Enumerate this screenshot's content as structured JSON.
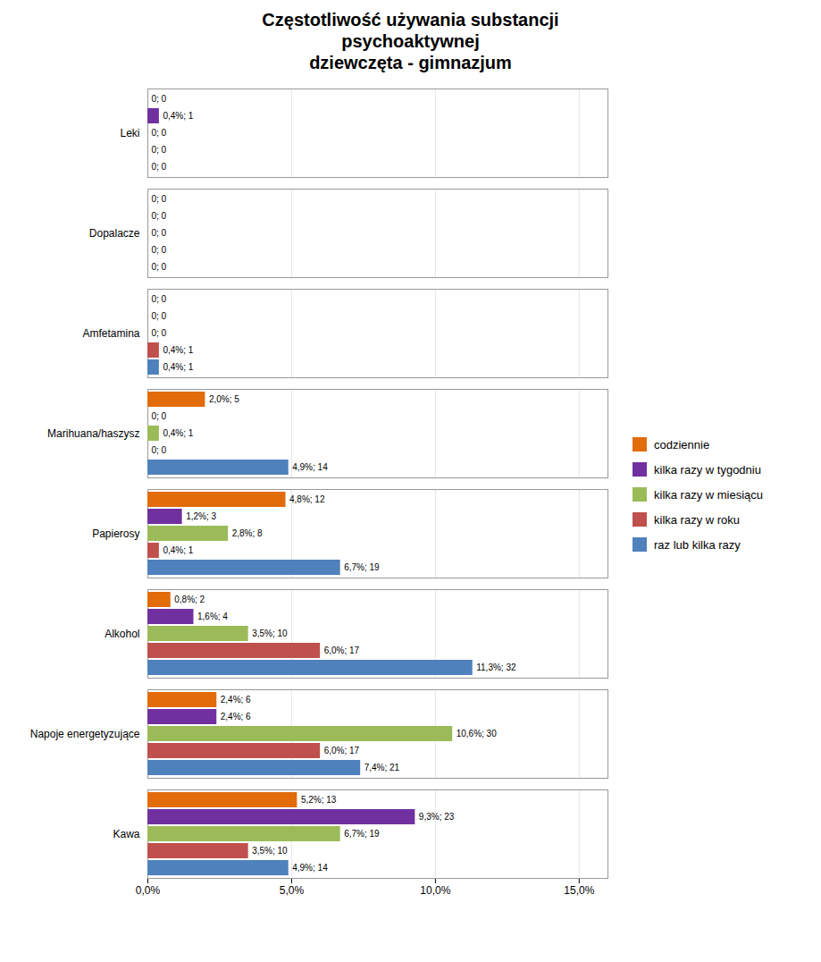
{
  "chart_data": {
    "type": "bar",
    "orientation": "horizontal",
    "title": "Częstotliwość używania substancji\npsychoaktywnej\ndziewczęta - gimnazjum",
    "categories": [
      "Kawa",
      "Napoje energetyzujące",
      "Alkohol",
      "Papierosy",
      "Marihuana/haszysz",
      "Amfetamina",
      "Dopalacze",
      "Leki"
    ],
    "series": [
      {
        "name": "codziennie",
        "color": "#e26b0a",
        "values": [
          5.2,
          2.4,
          0.8,
          4.8,
          2.0,
          0.0,
          0.0,
          0.0
        ],
        "counts": [
          13,
          6,
          2,
          12,
          5,
          0,
          0,
          0
        ],
        "value_labels": [
          "5,2%; 13",
          "2,4%; 6",
          "0,8%; 2",
          "4,8%; 12",
          "2,0%; 5",
          "0; 0",
          "0; 0",
          "0; 0"
        ]
      },
      {
        "name": "kilka razy w tygodniu",
        "color": "#7030a0",
        "values": [
          9.3,
          2.4,
          1.6,
          1.2,
          0.0,
          0.0,
          0.0,
          0.4
        ],
        "counts": [
          23,
          6,
          4,
          3,
          0,
          0,
          0,
          1
        ],
        "value_labels": [
          "9,3%; 23",
          "2,4%; 6",
          "1,6%; 4",
          "1,2%; 3",
          "0; 0",
          "0; 0",
          "0; 0",
          "0,4%; 1"
        ]
      },
      {
        "name": "kilka razy w miesiącu",
        "color": "#9bbb59",
        "values": [
          6.7,
          10.6,
          3.5,
          2.8,
          0.4,
          0.0,
          0.0,
          0.0
        ],
        "counts": [
          19,
          30,
          10,
          8,
          1,
          0,
          0,
          0
        ],
        "value_labels": [
          "6,7%; 19",
          "10,6%; 30",
          "3,5%; 10",
          "2,8%; 8",
          "0,4%; 1",
          "0; 0",
          "0; 0",
          "0; 0"
        ]
      },
      {
        "name": "kilka razy w roku",
        "color": "#c0504d",
        "values": [
          3.5,
          6.0,
          6.0,
          0.4,
          0.0,
          0.4,
          0.0,
          0.0
        ],
        "counts": [
          10,
          17,
          17,
          1,
          0,
          1,
          0,
          0
        ],
        "value_labels": [
          "3,5%; 10",
          "6,0%; 17",
          "6,0%; 17",
          "0,4%; 1",
          "0; 0",
          "0,4%; 1",
          "0; 0",
          "0; 0"
        ]
      },
      {
        "name": "raz lub kilka razy",
        "color": "#4f81bd",
        "values": [
          4.9,
          7.4,
          11.3,
          6.7,
          4.9,
          0.4,
          0.0,
          0.0
        ],
        "counts": [
          14,
          21,
          32,
          19,
          14,
          1,
          0,
          0
        ],
        "value_labels": [
          "4,9%; 14",
          "7,4%; 21",
          "11,3%; 32",
          "6,7%; 19",
          "4,9%; 14",
          "0,4%; 1",
          "0; 0",
          "0; 0"
        ]
      }
    ],
    "xlim": [
      0,
      16.0
    ],
    "xticks": [
      {
        "value": 0.0,
        "label": "0,0%"
      },
      {
        "value": 5.0,
        "label": "5,0%"
      },
      {
        "value": 10.0,
        "label": "10,0%"
      },
      {
        "value": 15.0,
        "label": "15,0%"
      }
    ],
    "grid": true,
    "legend": "right",
    "data_labels": true
  }
}
